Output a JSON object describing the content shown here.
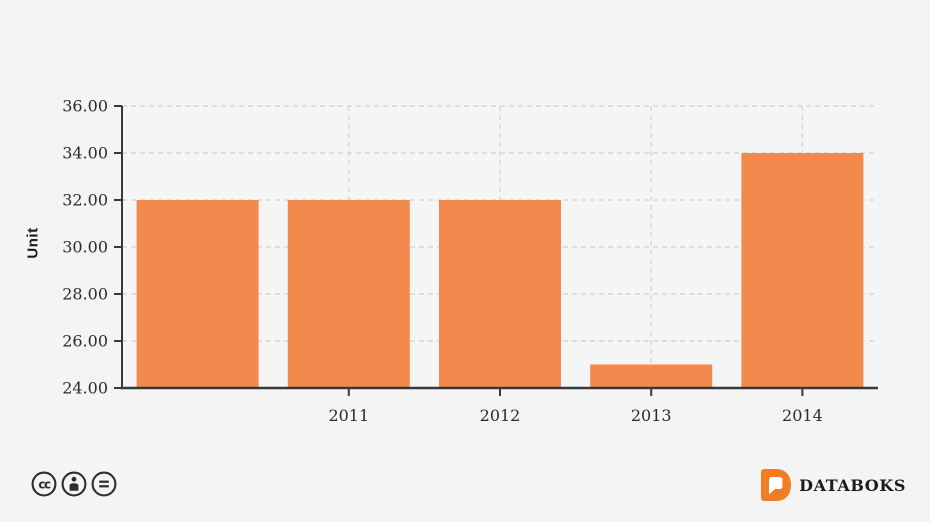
{
  "chart_data": {
    "type": "bar",
    "title": "",
    "xlabel": "",
    "ylabel": "Unit",
    "categories": [
      "",
      "2011",
      "2012",
      "2013",
      "2014"
    ],
    "values": [
      32,
      32,
      32,
      25,
      34
    ],
    "ylim": [
      24,
      36
    ],
    "ytick_labels": [
      "24.00",
      "26.00",
      "28.00",
      "30.00",
      "32.00",
      "34.00",
      "36.00"
    ],
    "ytick_values": [
      24,
      26,
      28,
      30,
      32,
      34,
      36
    ],
    "grid": "dashed horizontal and vertical gridlines",
    "legend": "none"
  },
  "colors": {
    "bar": "#f28a4d",
    "axis": "#383838",
    "grid": "#d7d7d7",
    "tick_text": "#2b2b2b",
    "page_background": "#f4f4f4",
    "plot_background": "#f5f5f5",
    "brand_orange": "#ee7d23",
    "brand_text": "#1b1b1b",
    "license_icon": "#2d2d2d"
  },
  "footer": {
    "license_icons": [
      "cc",
      "by",
      "nd"
    ],
    "brand": "DATABOKS"
  }
}
